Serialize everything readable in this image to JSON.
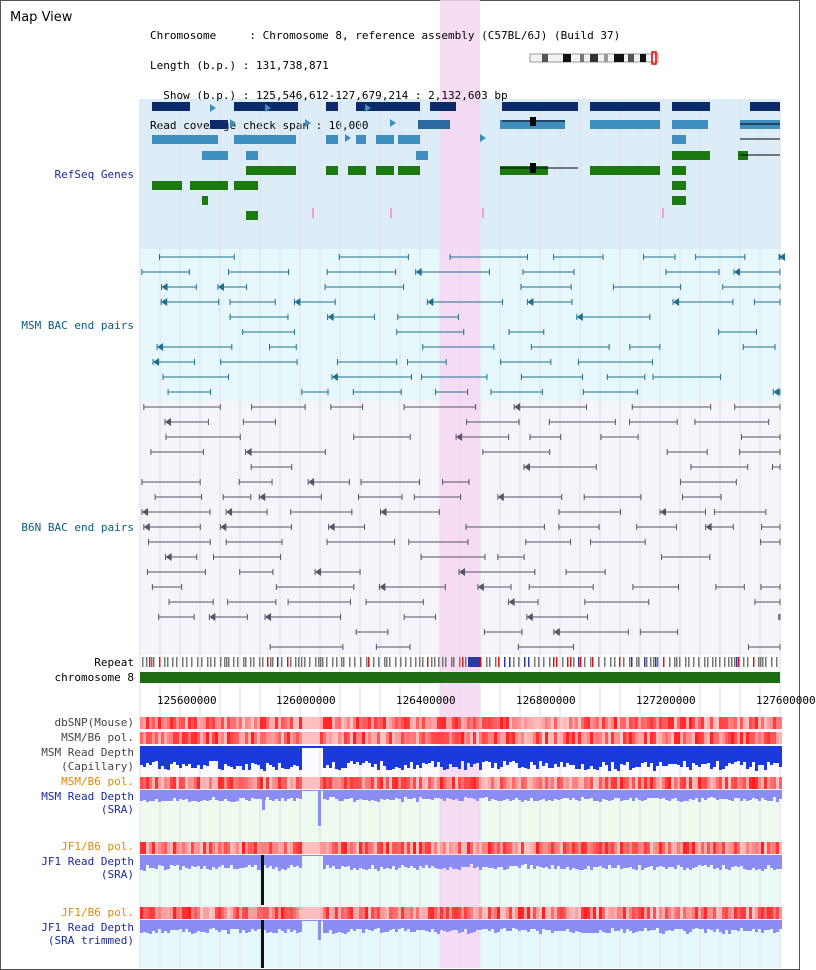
{
  "title": "Map View",
  "header": {
    "line1": "Chromosome     : Chromosome 8, reference assembly (C57BL/6J) (Build 37)",
    "line2": "Length (b.p.) : 131,738,871",
    "line3": "  Show (b.p.) : 125,546,612-127,679,214 : 2,132,603 bp",
    "line4": "Read coverage check span : 10,000"
  },
  "tracks": {
    "refseq": "RefSeq Genes",
    "msm_bac": "MSM BAC end pairs",
    "b6n_bac": "B6N BAC end pairs",
    "repeat": "Repeat",
    "chromosome": "chromosome 8",
    "dbsnp": "dbSNP(Mouse)",
    "msm_b6_pol_1": "MSM/B6 pol.",
    "msm_read_depth_cap_1": "MSM Read Depth",
    "msm_read_depth_cap_2": "(Capillary)",
    "msm_b6_pol_2": "MSM/B6 pol.",
    "msm_read_depth_sra_1": "MSM Read Depth",
    "msm_read_depth_sra_2": "(SRA)",
    "jf1_b6_pol_1": "JF1/B6 pol.",
    "jf1_read_depth_sra_1": "JF1 Read Depth",
    "jf1_read_depth_sra_2": "(SRA)",
    "jf1_b6_pol_2": "JF1/B6 pol.",
    "jf1_read_depth_trim_1": "JF1 Read Depth",
    "jf1_read_depth_trim_2": "(SRA trimmed)"
  },
  "axis_ticks": [
    "125600000",
    "126000000",
    "126400000",
    "126800000",
    "127200000",
    "127600000"
  ],
  "colors": {
    "refseq_bg": "#dcedf8",
    "msm_bg": "#e6f8fb",
    "b6n_bg": "#f3f3f8",
    "highlight": "#f7d6f1",
    "dark_blue": "#0a2a6a",
    "mid_blue": "#3e8fbf",
    "green": "#1a7a10"
  }
}
